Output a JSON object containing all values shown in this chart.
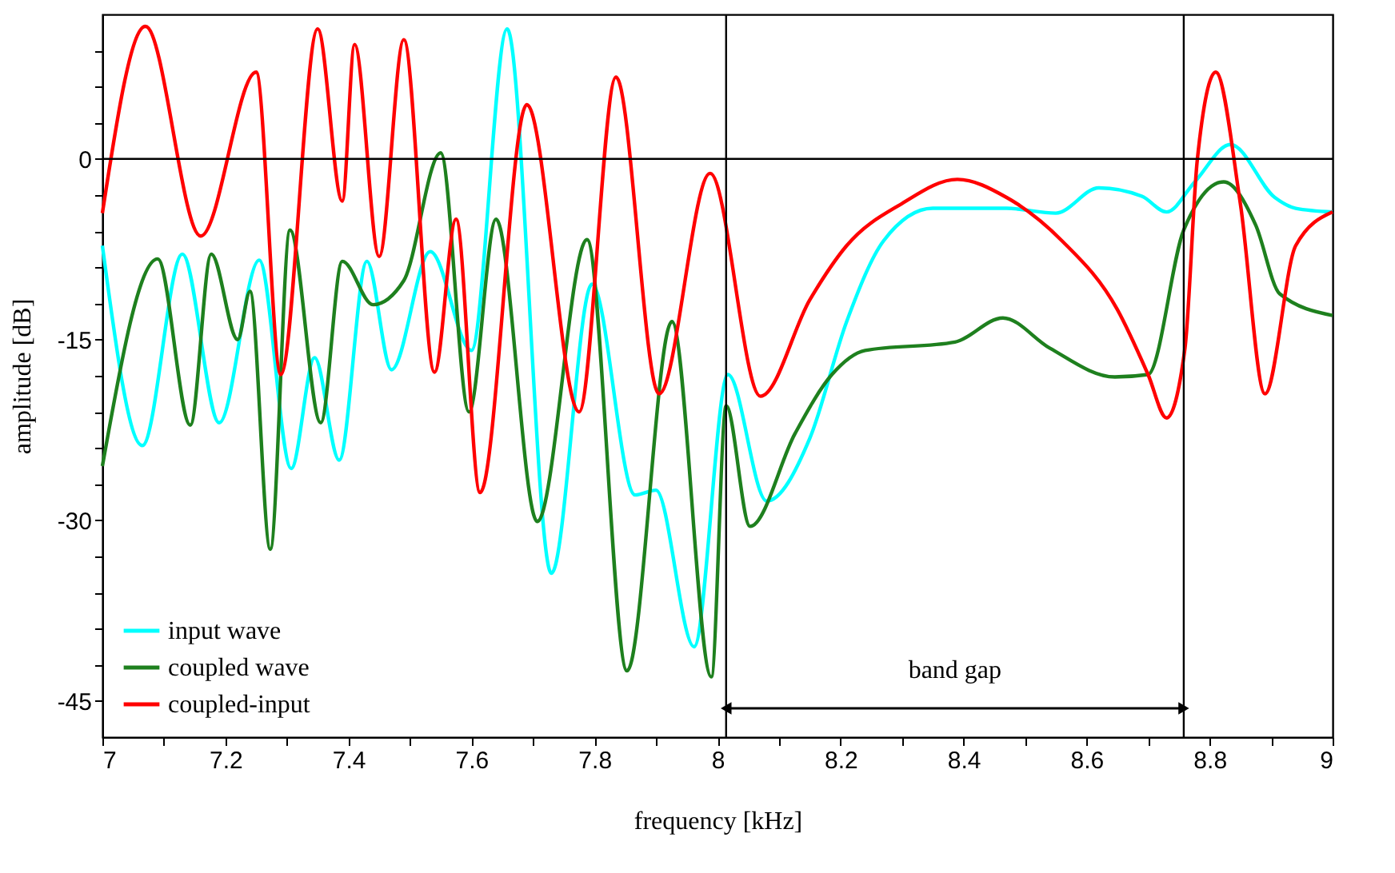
{
  "chart_data": {
    "type": "line",
    "xlabel": "frequency [kHz]",
    "ylabel": "amplitude [dB]",
    "xlim": [
      7,
      9
    ],
    "ylim": [
      -48,
      12
    ],
    "xticks": [
      7,
      {
        "value": 7.1,
        "label": null
      },
      7.2,
      {
        "value": 7.3,
        "label": null
      },
      7.4,
      {
        "value": 7.5,
        "label": null
      },
      7.6,
      {
        "value": 7.7,
        "label": null
      },
      7.8,
      {
        "value": 7.9,
        "label": null
      },
      8,
      {
        "value": 8.1,
        "label": null
      },
      8.2,
      {
        "value": 8.3,
        "label": null
      },
      8.4,
      {
        "value": 8.5,
        "label": null
      },
      8.6,
      {
        "value": 8.7,
        "label": null
      },
      8.8,
      {
        "value": 8.9,
        "label": null
      },
      9
    ],
    "yticks": [
      -45,
      {
        "value": -42,
        "label": null
      },
      {
        "value": -39,
        "label": null
      },
      {
        "value": -36,
        "label": null
      },
      {
        "value": -33,
        "label": null
      },
      -30,
      {
        "value": -27,
        "label": null
      },
      {
        "value": -24,
        "label": null
      },
      {
        "value": -21,
        "label": null
      },
      {
        "value": -18,
        "label": null
      },
      -15,
      {
        "value": -12,
        "label": null
      },
      {
        "value": -9,
        "label": null
      },
      {
        "value": -6,
        "label": null
      },
      {
        "value": -3,
        "label": null
      },
      0,
      {
        "value": 3,
        "label": null
      },
      {
        "value": 6,
        "label": null
      },
      {
        "value": 9,
        "label": null
      }
    ],
    "grid": false,
    "legend": "bottom left",
    "marker": "none",
    "line_style": "solid",
    "series": [
      {
        "name": "input wave",
        "color": "#00ffff",
        "x": [
          7.0,
          7.065,
          7.13,
          7.19,
          7.255,
          7.307,
          7.345,
          7.385,
          7.43,
          7.47,
          7.533,
          7.6,
          7.658,
          7.73,
          7.796,
          7.866,
          7.9,
          7.962,
          8.017,
          8.08,
          8.15,
          8.21,
          8.27,
          8.35,
          8.47,
          8.55,
          8.62,
          8.69,
          8.73,
          8.776,
          8.834,
          8.906,
          8.94,
          9.0
        ],
        "values": [
          -7.2,
          -23.8,
          -7.9,
          -21.9,
          -8.4,
          -25.7,
          -16.5,
          -25,
          -8.5,
          -17.5,
          -7.7,
          -15.9,
          10.8,
          -34.4,
          -10.4,
          -27.9,
          -27.5,
          -40.5,
          -17.9,
          -28.4,
          -23.2,
          -13.5,
          -6.8,
          -4.1,
          -4.1,
          -4.5,
          -2.4,
          -3.1,
          -4.4,
          -1.9,
          1.2,
          -3.2,
          -4.1,
          -4.4
        ]
      },
      {
        "name": "coupled wave",
        "color": "#1e801e",
        "x": [
          7.0,
          7.09,
          7.143,
          7.177,
          7.22,
          7.24,
          7.273,
          7.305,
          7.355,
          7.39,
          7.44,
          7.49,
          7.55,
          7.596,
          7.64,
          7.707,
          7.788,
          7.853,
          7.926,
          7.99,
          8.014,
          8.053,
          8.126,
          8.186,
          8.24,
          8.386,
          8.464,
          8.54,
          8.646,
          8.7,
          8.758,
          8.823,
          8.875,
          8.914,
          9.0
        ],
        "values": [
          -25.5,
          -8.3,
          -22.1,
          -7.9,
          -15,
          -11,
          -32.4,
          -5.9,
          -21.9,
          -8.5,
          -12.1,
          -10.1,
          0.5,
          -21,
          -5,
          -30.1,
          -6.7,
          -42.5,
          -13.5,
          -43,
          -20.5,
          -30.5,
          -22.8,
          -17.9,
          -15.9,
          -15.2,
          -13.2,
          -15.7,
          -18.1,
          -17.9,
          -5.9,
          -1.9,
          -5.5,
          -11.2,
          -13
        ]
      },
      {
        "name": "coupled-input",
        "color": "#ff0000",
        "x": [
          7.0,
          7.07,
          7.16,
          7.25,
          7.29,
          7.35,
          7.39,
          7.41,
          7.45,
          7.49,
          7.54,
          7.575,
          7.614,
          7.69,
          7.775,
          7.835,
          7.905,
          7.988,
          8.07,
          8.15,
          8.21,
          8.3,
          8.39,
          8.47,
          8.56,
          8.65,
          8.7,
          8.73,
          8.76,
          8.78,
          8.81,
          8.85,
          8.89,
          8.94,
          9.0
        ],
        "values": [
          -4.5,
          11,
          -6.4,
          7.2,
          -17.9,
          10.8,
          -3.5,
          9.5,
          -8.1,
          9.9,
          -17.7,
          -5,
          -27.7,
          4.5,
          -21,
          6.8,
          -19.5,
          -1.2,
          -19.7,
          -11.7,
          -7.2,
          -3.7,
          -1.7,
          -3.2,
          -6.8,
          -12.5,
          -17.9,
          -21.5,
          -15.7,
          -0.1,
          7.2,
          -3.7,
          -19.5,
          -7.2,
          -4.4
        ]
      }
    ],
    "ref_lines": [
      {
        "axis": "y",
        "value": 0,
        "color": "#000000"
      },
      {
        "axis": "x",
        "value": 8.014,
        "color": "#000000"
      },
      {
        "axis": "x",
        "value": 8.758,
        "color": "#000000"
      }
    ],
    "annotations": [
      "band gap"
    ]
  }
}
